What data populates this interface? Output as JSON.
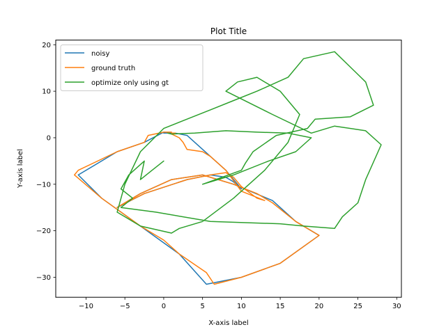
{
  "chart_data": {
    "type": "line",
    "title": "Plot Title",
    "xlabel": "X-axis label",
    "ylabel": "Y-axis label",
    "xlim": [
      -13.9,
      30.6
    ],
    "ylim": [
      -34.3,
      21.0
    ],
    "xticks": [
      -10,
      -5,
      0,
      5,
      10,
      15,
      20,
      25,
      30
    ],
    "yticks": [
      -30,
      -20,
      -10,
      0,
      10,
      20
    ],
    "legend_position": "top-left",
    "grid": false,
    "series": [
      {
        "name": "noisy",
        "color": "#1f77b4",
        "x": [
          1.0,
          0.0,
          -2.5,
          -6.0,
          -11.0,
          -8.0,
          -3.0,
          2.0,
          5.5,
          10.0,
          15.0,
          20.0,
          17.0,
          14.0,
          9.0,
          5.0,
          1.0,
          -3.0,
          -6.0,
          -2.5,
          3.0,
          6.0,
          8.0,
          9.0,
          10.0,
          8.0,
          5.0,
          3.0,
          1.5,
          0.0
        ],
        "y": [
          1.0,
          1.2,
          -1.0,
          -3.0,
          -8.0,
          -13.0,
          -19.0,
          -25.0,
          -31.5,
          -30.0,
          -27.0,
          -21.0,
          -18.0,
          -13.5,
          -10.0,
          -8.0,
          -9.0,
          -12.0,
          -15.0,
          -12.0,
          -9.0,
          -8.0,
          -8.5,
          -9.5,
          -11.0,
          -7.0,
          -2.5,
          0.5,
          1.0,
          1.0
        ]
      },
      {
        "name": "ground truth",
        "color": "#ff7f0e",
        "x": [
          1.0,
          0.0,
          -2.0,
          -2.5,
          -6.0,
          -11.0,
          -11.5,
          -8.0,
          -3.0,
          0.0,
          2.0,
          5.5,
          6.5,
          10.0,
          15.0,
          20.0,
          19.5,
          17.0,
          14.0,
          12.0,
          9.0,
          7.0,
          5.0,
          1.0,
          -3.0,
          -6.0,
          -5.5,
          -2.5,
          3.0,
          6.0,
          8.0,
          9.0,
          10.0,
          12.0,
          13.0,
          10.0,
          8.0,
          6.0,
          5.0,
          3.0,
          2.5,
          2.0,
          1.0,
          1.5,
          1.0
        ],
        "y": [
          1.2,
          1.2,
          0.5,
          -1.0,
          -3.0,
          -7.0,
          -8.0,
          -13.0,
          -19.0,
          -22.0,
          -25.0,
          -29.0,
          -31.5,
          -30.0,
          -27.0,
          -21.0,
          -20.5,
          -18.0,
          -14.0,
          -12.0,
          -10.0,
          -9.0,
          -8.0,
          -9.0,
          -12.0,
          -15.0,
          -14.5,
          -12.0,
          -9.0,
          -8.0,
          -7.5,
          -8.5,
          -10.5,
          -13.0,
          -13.5,
          -11.5,
          -7.0,
          -4.0,
          -3.0,
          -2.5,
          -1.0,
          0.0,
          0.8,
          1.0,
          1.0
        ]
      },
      {
        "name": "optimize only using gt",
        "color": "#2ca02c",
        "x": [
          0.0,
          -1.5,
          -3.0,
          -2.5,
          -4.5,
          -5.5,
          -4.0,
          -5.5,
          -1.0,
          6.0,
          15.0,
          18.0,
          22.0,
          23.0,
          25.0,
          26.0,
          28.0,
          26.0,
          22.0,
          19.0,
          14.0,
          8.0,
          9.5,
          12.0,
          15.0,
          17.5,
          16.0,
          13.0,
          9.0,
          5.0,
          2.0,
          1.0,
          -3.0,
          -6.0,
          -5.0,
          -3.0,
          0.0,
          3.0,
          6.0,
          9.0,
          12.0,
          16.0,
          18.0,
          22.0,
          26.0,
          27.0,
          24.0,
          19.5,
          18.5,
          14.5,
          11.5,
          10.5,
          10.0,
          5.0,
          9.0,
          13.5,
          17.0,
          19.0,
          16.0,
          12.0,
          8.0,
          4.0,
          1.0,
          0.5
        ],
        "y": [
          -5.0,
          -7.0,
          -9.0,
          -5.0,
          -8.0,
          -11.0,
          -13.0,
          -15.0,
          -16.0,
          -18.0,
          -18.5,
          -19.0,
          -19.5,
          -17.0,
          -14.0,
          -9.0,
          -1.5,
          1.5,
          2.5,
          1.0,
          5.0,
          10.0,
          12.0,
          13.0,
          10.0,
          5.0,
          -1.0,
          -7.0,
          -13.0,
          -18.0,
          -19.5,
          -20.5,
          -19.0,
          -16.0,
          -10.0,
          -3.0,
          2.0,
          4.0,
          6.0,
          8.0,
          10.0,
          13.0,
          17.0,
          18.5,
          12.0,
          7.0,
          4.5,
          4.0,
          2.0,
          0.5,
          -3.0,
          -5.5,
          -7.0,
          -10.0,
          -8.0,
          -5.0,
          -3.0,
          0.0,
          1.0,
          1.2,
          1.5,
          1.0,
          0.8,
          1.0
        ]
      }
    ]
  }
}
